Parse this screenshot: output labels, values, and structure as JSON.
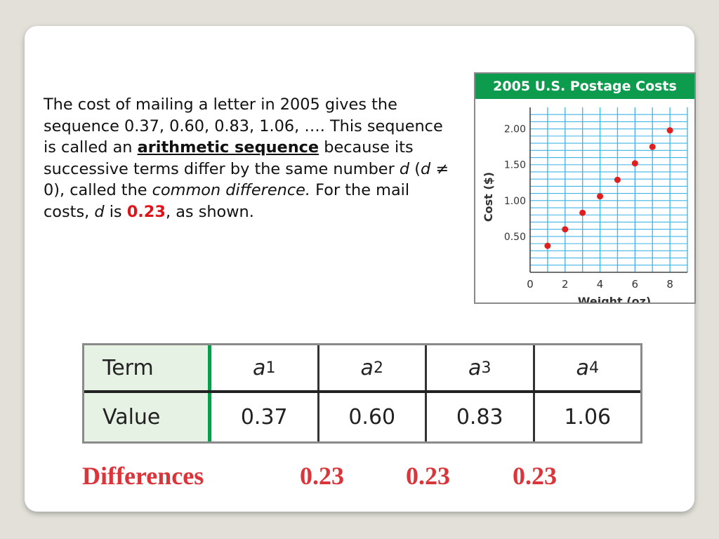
{
  "paragraph": {
    "t1": "The cost of mailing a letter in 2005 gives the sequence 0.37, 0.60, 0.83, 1.06, ….  This sequence is called an ",
    "keyword": "arithmetic sequence",
    "t2": " because its successive terms differ by the same number ",
    "d1": "d",
    "t3": " (",
    "d2": "d",
    "t4": " ≠ 0), called the ",
    "common_difference": "common difference.",
    "t5": " For the mail costs, ",
    "d3": "d",
    "t6": " is ",
    "value": "0.23",
    "t7": ", as shown."
  },
  "chart_data": {
    "type": "scatter",
    "title": "2005 U.S. Postage Costs",
    "xlabel": "Weight (oz)",
    "ylabel": "Cost ($)",
    "x_ticks": [
      "0",
      "2",
      "4",
      "6",
      "8"
    ],
    "y_ticks": [
      "0.50",
      "1.00",
      "1.50",
      "2.00"
    ],
    "xlim": [
      0,
      9
    ],
    "ylim": [
      0,
      2.3
    ],
    "grid": true,
    "point_color": "#e0201f",
    "grid_color": "#3fb4e6",
    "title_bg": "#0d9b4e",
    "x": [
      1,
      2,
      3,
      4,
      5,
      6,
      7,
      8
    ],
    "y": [
      0.37,
      0.6,
      0.83,
      1.06,
      1.29,
      1.52,
      1.75,
      1.98
    ]
  },
  "table": {
    "row1_header": "Term",
    "row2_header": "Value",
    "terms": [
      {
        "var": "a",
        "sub": "1"
      },
      {
        "var": "a",
        "sub": "2"
      },
      {
        "var": "a",
        "sub": "3"
      },
      {
        "var": "a",
        "sub": "4"
      }
    ],
    "values": [
      "0.37",
      "0.60",
      "0.83",
      "1.06"
    ]
  },
  "differences": {
    "label": "Differences",
    "values": [
      "0.23",
      "0.23",
      "0.23"
    ]
  }
}
